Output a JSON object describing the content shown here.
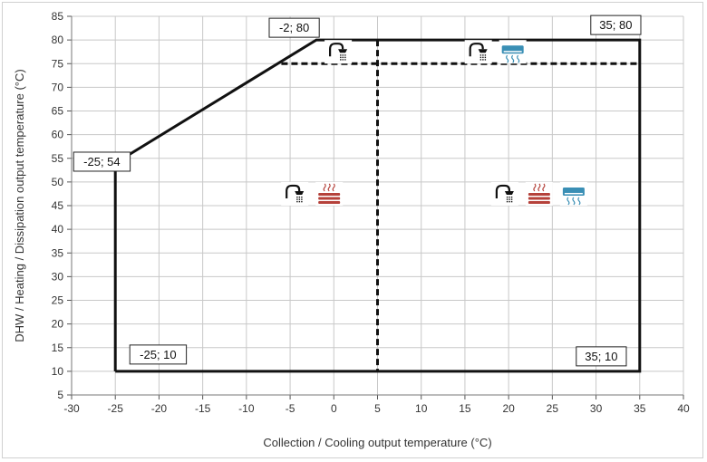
{
  "chart_data": {
    "type": "line",
    "xlabel": "Collection / Cooling output temperature (°C)",
    "ylabel": "DHW / Heating / Dissipation output temperature (°C)",
    "xlim": [
      -30,
      40
    ],
    "ylim": [
      5,
      85
    ],
    "xticks": [
      -30,
      -25,
      -20,
      -15,
      -10,
      -5,
      0,
      5,
      10,
      15,
      20,
      25,
      30,
      35,
      40
    ],
    "yticks": [
      5,
      10,
      15,
      20,
      25,
      30,
      35,
      40,
      45,
      50,
      55,
      60,
      65,
      70,
      75,
      80,
      85
    ],
    "grid": true,
    "series": [
      {
        "style": "solid",
        "points": [
          [
            -25,
            10
          ],
          [
            -25,
            54
          ],
          [
            -2,
            80
          ],
          [
            35,
            80
          ],
          [
            35,
            10
          ],
          [
            -25,
            10
          ]
        ]
      },
      {
        "style": "dashed",
        "points": [
          [
            -6,
            75
          ],
          [
            35,
            75
          ]
        ]
      },
      {
        "style": "dashed",
        "points": [
          [
            5,
            80
          ],
          [
            5,
            10
          ]
        ]
      }
    ],
    "annotations": [
      {
        "text": "-2; 80",
        "x": -2,
        "y": 80
      },
      {
        "text": "35; 80",
        "x": 35,
        "y": 80
      },
      {
        "text": "-25; 54",
        "x": -25,
        "y": 54
      },
      {
        "text": "-25; 10",
        "x": -25,
        "y": 10
      },
      {
        "text": "35; 10",
        "x": 35,
        "y": 10
      }
    ],
    "icon_groups": [
      {
        "x": 0.5,
        "y": 77.5,
        "icons": [
          "shower-icon"
        ]
      },
      {
        "x": 18.5,
        "y": 77.5,
        "icons": [
          "shower-icon",
          "cooling-unit-icon"
        ]
      },
      {
        "x": -2.5,
        "y": 47.5,
        "icons": [
          "shower-icon",
          "radiator-icon"
        ]
      },
      {
        "x": 23.5,
        "y": 47.5,
        "icons": [
          "shower-icon",
          "radiator-icon",
          "cooling-unit-icon"
        ]
      }
    ],
    "colors": {
      "line": "#111111",
      "grid": "#c8c8c8",
      "heating": "#b5413a",
      "cooling": "#3a8fb5"
    }
  }
}
